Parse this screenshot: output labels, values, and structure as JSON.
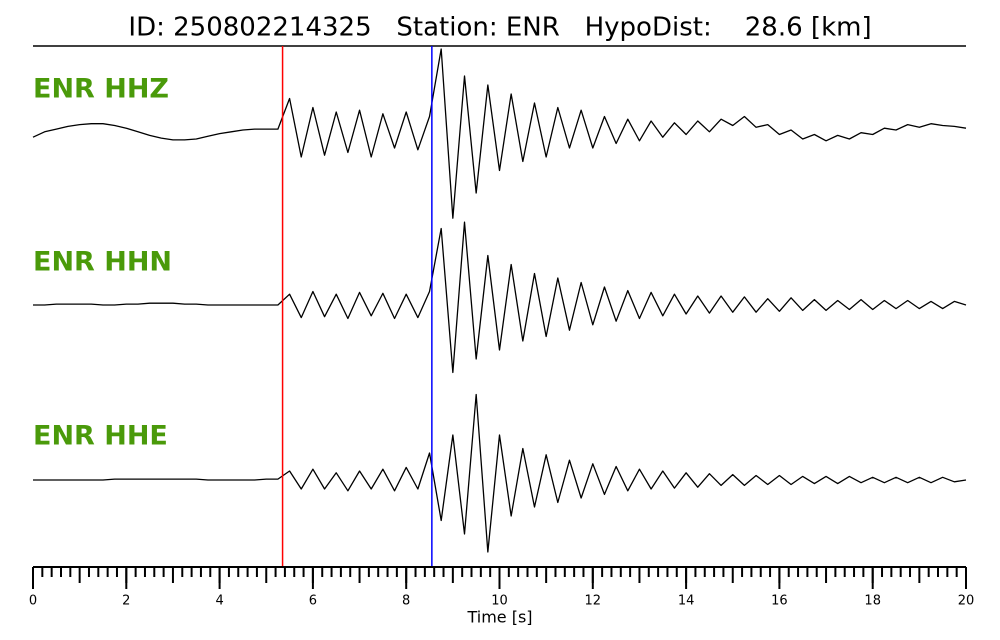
{
  "chart_data": {
    "type": "waveform",
    "title": "ID: 250802214325   Station: ENR   HypoDist:    28.6 [km]",
    "xlabel": "Time [s]",
    "xlim": [
      0,
      20
    ],
    "xticks": [
      0,
      2,
      4,
      6,
      8,
      10,
      12,
      14,
      16,
      18,
      20
    ],
    "minor_tick_interval": 0.2,
    "label_color": "#4a9a0a",
    "picks": [
      {
        "time": 5.35,
        "color": "#ff0000"
      },
      {
        "time": 8.55,
        "color": "#0000ff"
      }
    ],
    "x": [
      0,
      0.25,
      0.5,
      0.75,
      1,
      1.25,
      1.5,
      1.75,
      2,
      2.25,
      2.5,
      2.75,
      3,
      3.25,
      3.5,
      3.75,
      4,
      4.25,
      4.5,
      4.75,
      5,
      5.25,
      5.5,
      5.75,
      6,
      6.25,
      6.5,
      6.75,
      7,
      7.25,
      7.5,
      7.75,
      8,
      8.25,
      8.5,
      8.75,
      9,
      9.25,
      9.5,
      9.75,
      10,
      10.25,
      10.5,
      10.75,
      11,
      11.25,
      11.5,
      11.75,
      12,
      12.25,
      12.5,
      12.75,
      13,
      13.25,
      13.5,
      13.75,
      14,
      14.25,
      14.5,
      14.75,
      15,
      15.25,
      15.5,
      15.75,
      16,
      16.25,
      16.5,
      16.75,
      17,
      17.25,
      17.5,
      17.75,
      18,
      18.25,
      18.5,
      18.75,
      19,
      19.25,
      19.5,
      19.75,
      20
    ],
    "series": [
      {
        "name": "ENR HHZ",
        "color": "#000000",
        "values": [
          -0.08,
          -0.02,
          0.01,
          0.04,
          0.06,
          0.07,
          0.07,
          0.05,
          0.02,
          -0.02,
          -0.06,
          -0.09,
          -0.11,
          -0.11,
          -0.1,
          -0.07,
          -0.04,
          -0.02,
          0,
          0.01,
          0.01,
          0.01,
          0.35,
          -0.3,
          0.25,
          -0.28,
          0.2,
          -0.25,
          0.22,
          -0.3,
          0.18,
          -0.2,
          0.2,
          -0.22,
          0.15,
          0.9,
          -0.98,
          0.6,
          -0.7,
          0.5,
          -0.45,
          0.4,
          -0.35,
          0.3,
          -0.3,
          0.25,
          -0.2,
          0.22,
          -0.2,
          0.15,
          -0.15,
          0.12,
          -0.12,
          0.1,
          -0.08,
          0.08,
          -0.05,
          0.1,
          -0.02,
          0.12,
          0.05,
          0.15,
          0.03,
          0.06,
          -0.05,
          0,
          -0.1,
          -0.05,
          -0.12,
          -0.06,
          -0.1,
          -0.03,
          -0.05,
          0.02,
          0,
          0.06,
          0.03,
          0.07,
          0.05,
          0.04,
          0.02
        ]
      },
      {
        "name": "ENR HHN",
        "color": "#000000",
        "values": [
          0,
          0,
          0.01,
          0.01,
          0.01,
          0.01,
          0,
          0,
          0.01,
          0.01,
          0.02,
          0.02,
          0.02,
          0.01,
          0.01,
          0,
          0,
          0,
          0,
          0,
          0,
          0,
          0.12,
          -0.14,
          0.15,
          -0.13,
          0.12,
          -0.15,
          0.14,
          -0.12,
          0.13,
          -0.15,
          0.12,
          -0.14,
          0.15,
          0.85,
          -0.75,
          0.92,
          -0.6,
          0.55,
          -0.5,
          0.45,
          -0.4,
          0.35,
          -0.35,
          0.3,
          -0.28,
          0.25,
          -0.22,
          0.2,
          -0.18,
          0.16,
          -0.15,
          0.14,
          -0.12,
          0.12,
          -0.1,
          0.1,
          -0.09,
          0.1,
          -0.08,
          0.09,
          -0.08,
          0.07,
          -0.07,
          0.08,
          -0.06,
          0.06,
          -0.06,
          0.05,
          -0.05,
          0.06,
          -0.05,
          0.05,
          -0.04,
          0.05,
          -0.04,
          0.04,
          -0.04,
          0.04,
          0
        ]
      },
      {
        "name": "ENR HHE",
        "color": "#000000",
        "values": [
          0,
          0,
          0,
          0,
          0,
          0,
          0,
          0.01,
          0.01,
          0.01,
          0.01,
          0.01,
          0.01,
          0.01,
          0.01,
          0,
          0,
          0,
          0,
          0,
          0.01,
          0.01,
          0.1,
          -0.1,
          0.12,
          -0.1,
          0.08,
          -0.12,
          0.1,
          -0.1,
          0.12,
          -0.12,
          0.14,
          -0.1,
          0.3,
          -0.45,
          0.5,
          -0.6,
          0.95,
          -0.8,
          0.5,
          -0.4,
          0.35,
          -0.3,
          0.28,
          -0.25,
          0.22,
          -0.2,
          0.18,
          -0.16,
          0.15,
          -0.12,
          0.12,
          -0.1,
          0.1,
          -0.09,
          0.08,
          -0.08,
          0.07,
          -0.06,
          0.06,
          -0.06,
          0.05,
          -0.05,
          0.05,
          -0.05,
          0.04,
          -0.04,
          0.04,
          -0.04,
          0.04,
          -0.03,
          0.03,
          -0.03,
          0.03,
          -0.03,
          0.03,
          -0.03,
          0.03,
          -0.02,
          0
        ]
      }
    ]
  }
}
